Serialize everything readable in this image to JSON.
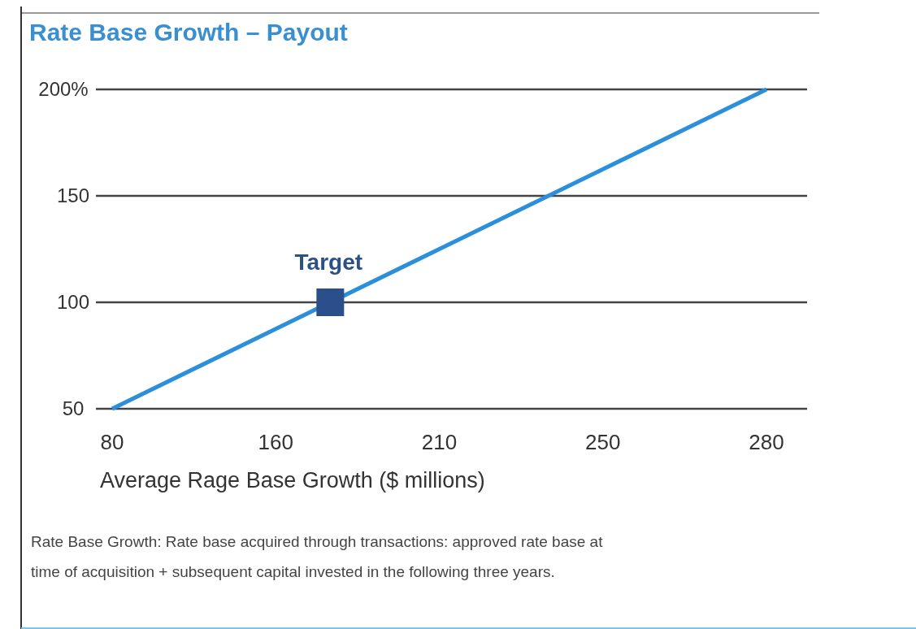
{
  "chart_data": {
    "type": "line",
    "title": "Rate Base Growth – Payout",
    "xlabel": "Average Rage Base Growth ($ millions)",
    "categories": [
      "80",
      "160",
      "210",
      "250",
      "280"
    ],
    "series": [
      {
        "color": "#2b8fdb",
        "values": [
          50,
          87.5,
          125,
          162.5,
          200
        ]
      }
    ],
    "ylim": [
      50,
      200
    ],
    "yticks": [
      50,
      100,
      150,
      {
        "value": 200,
        "label": "200%"
      }
    ],
    "grid": "y",
    "marker": "none",
    "line_style": "solid",
    "annotations": [
      {
        "text": "Target",
        "y": 100
      },
      "Rate Base Growth: Rate base acquired through transactions: approved rate base at time of acquisition + subsequent capital invested in the following three years."
    ]
  }
}
